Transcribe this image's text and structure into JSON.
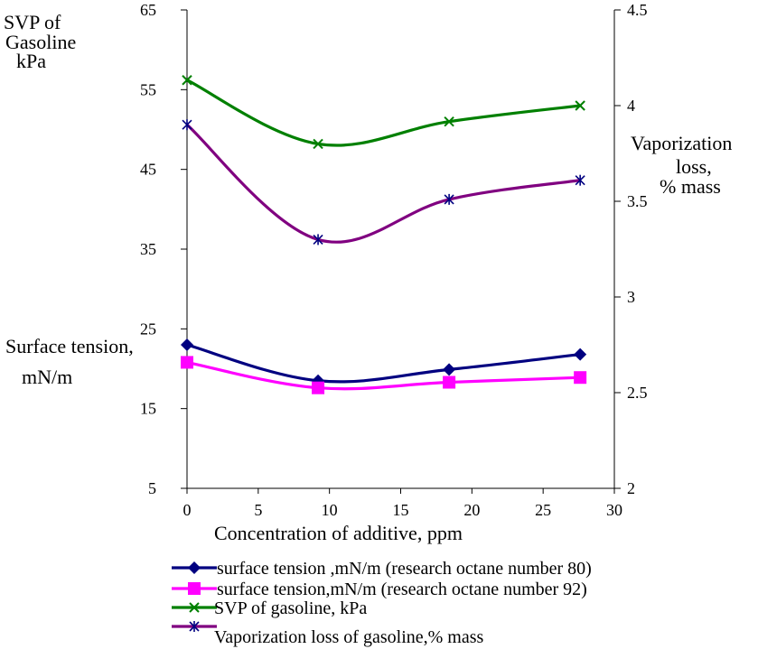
{
  "chart_data": {
    "type": "line",
    "title": "",
    "xlabel": "Concentration of additive, ppm",
    "xlim": [
      0,
      30
    ],
    "x_ticks": [
      "0",
      "5",
      "10",
      "15",
      "20",
      "25",
      "30"
    ],
    "y_left_ticks": [
      "5",
      "15",
      "25",
      "35",
      "45",
      "55",
      "65"
    ],
    "y_left_lim": [
      5,
      65
    ],
    "y_right_ticks": [
      "2",
      "2.5",
      "3",
      "3.5",
      "4",
      "4.5"
    ],
    "y_right_lim": [
      2,
      4.5
    ],
    "grid": false,
    "legend_position": "bottom",
    "labels": {
      "svp_line1": "SVP of",
      "svp_line2": "Gasoline",
      "svp_line3": "kPa",
      "surface_line1": "Surface tension,",
      "surface_line2": "mN/m",
      "vap_line1": "Vaporization",
      "vap_line2": "loss,",
      "vap_line3": "% mass"
    },
    "series": [
      {
        "name": "surface tension ,mN/m (research octane number 80)",
        "axis": "left",
        "color": "#000080",
        "marker": "diamond",
        "x": [
          0,
          9.2,
          18.4,
          27.6
        ],
        "values": [
          23,
          18.5,
          19.9,
          21.8
        ]
      },
      {
        "name": "surface tension,mN/m (research octane number 92)",
        "axis": "left",
        "color": "#FF00FF",
        "marker": "square",
        "x": [
          0,
          9.2,
          18.4,
          27.6
        ],
        "values": [
          20.8,
          17.6,
          18.3,
          18.9
        ]
      },
      {
        "name": "SVP of gasoline, kPa",
        "axis": "left",
        "color": "#008000",
        "marker": "x",
        "x": [
          0,
          9.2,
          18.4,
          27.6
        ],
        "values": [
          56.2,
          48.2,
          51,
          53
        ]
      },
      {
        "name": "Vaporization loss of gasoline,% mass",
        "axis": "right",
        "color": "#800080",
        "marker": "star",
        "x": [
          0,
          9.2,
          18.4,
          27.6
        ],
        "values": [
          3.9,
          3.3,
          3.51,
          3.61
        ]
      }
    ]
  }
}
